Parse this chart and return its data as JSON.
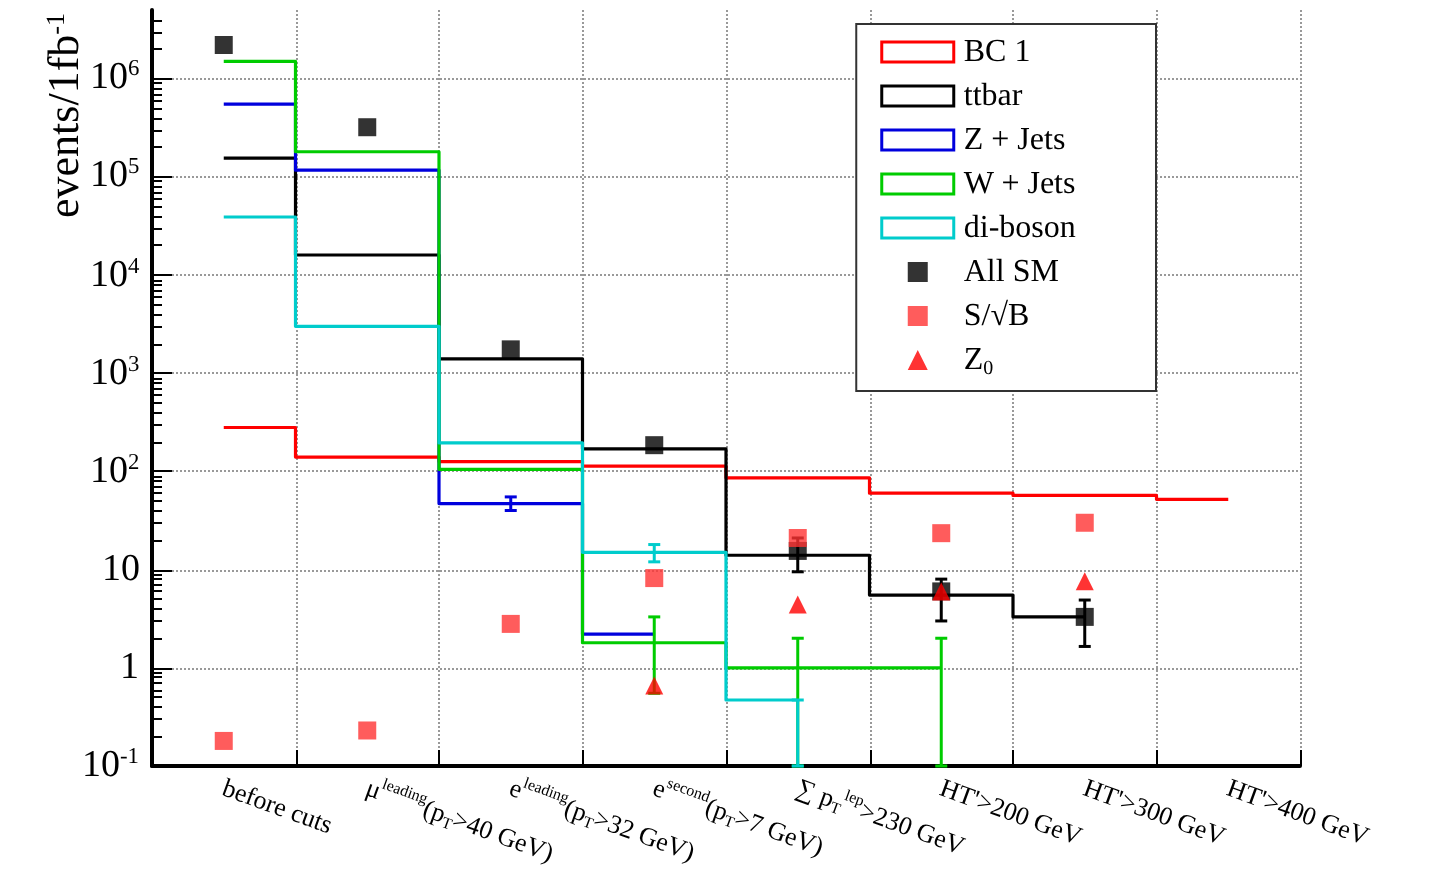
{
  "chart_data": {
    "type": "step",
    "ylabel": "events/1fb$^{-1}$",
    "categories": [
      "before cuts",
      "μ$^{leading}$(p$_{T}$>40 GeV)",
      "e$^{leading}$(p$_{T}$>32 GeV)",
      "e$^{second}$(p$_{T}$>7 GeV)",
      "∑ p$_{T}$$^{lep}$>230 GeV",
      "HT'>200 GeV",
      "HT'>300 GeV",
      "HT'>400 GeV"
    ],
    "series": [
      {
        "name": "BC 1",
        "color": "#ff0000",
        "values": [
          280,
          140,
          126,
          113,
          86,
          60,
          57,
          52
        ]
      },
      {
        "name": "ttbar",
        "color": "#000000",
        "values": [
          155000,
          16000,
          1400,
          170,
          14,
          5.5,
          3.3,
          null
        ]
      },
      {
        "name": "Z + Jets",
        "color": "#0000dd",
        "values": [
          550000,
          117000,
          47,
          2.2,
          null,
          null,
          null,
          null
        ],
        "errors": [
          null,
          null,
          [
            40,
            55
          ],
          null,
          null,
          null,
          null,
          null
        ]
      },
      {
        "name": "W + Jets",
        "color": "#00cc00",
        "values": [
          1500000,
          180000,
          105,
          1.8,
          1.0,
          1.0,
          null,
          null
        ],
        "errors": [
          null,
          null,
          null,
          [
            0.55,
            3.3
          ],
          [
            0.1,
            2.0
          ],
          [
            0.1,
            2.0
          ],
          null,
          null
        ]
      },
      {
        "name": "di-boson",
        "color": "#00cccc",
        "values": [
          39000,
          3000,
          195,
          15,
          0.47,
          null,
          null,
          null
        ],
        "errors": [
          null,
          null,
          null,
          [
            12,
            18
          ],
          [
            0.1,
            0.47
          ],
          null,
          null,
          null
        ]
      },
      {
        "name": "All SM",
        "type": "scatter",
        "marker": "square",
        "color": "#000000",
        "values": [
          2200000,
          320000,
          1750,
          185,
          15.5,
          6.0,
          3.3,
          null
        ],
        "errors": [
          null,
          null,
          null,
          null,
          [
            9.5,
            21
          ],
          [
            3.0,
            8.0
          ],
          [
            1.65,
            4.9
          ],
          null
        ]
      },
      {
        "name": "S/√B",
        "type": "scatter",
        "marker": "square",
        "color": "#ff3333",
        "values": [
          0.18,
          0.23,
          2.8,
          8.2,
          21,
          23.5,
          30,
          null
        ]
      },
      {
        "name": "Z$_{0}$",
        "type": "scatter",
        "marker": "triangle",
        "color": "#ff0000",
        "values": [
          null,
          null,
          null,
          0.66,
          4.4,
          6.0,
          7.6,
          null
        ]
      }
    ],
    "log": "y",
    "ylim": [
      0.1,
      5000000
    ],
    "yticks": [
      {
        "value": 0.1,
        "label": "10$^{-1}$"
      },
      1,
      10,
      {
        "value": 100,
        "label": "10$^{2}$"
      },
      {
        "value": 1000,
        "label": "10$^{3}$"
      },
      {
        "value": 10000,
        "label": "10$^{4}$"
      },
      {
        "value": 100000,
        "label": "10$^{5}$"
      },
      {
        "value": 1000000,
        "label": "10$^{6}$"
      }
    ],
    "grid": true,
    "legend": "top right"
  }
}
